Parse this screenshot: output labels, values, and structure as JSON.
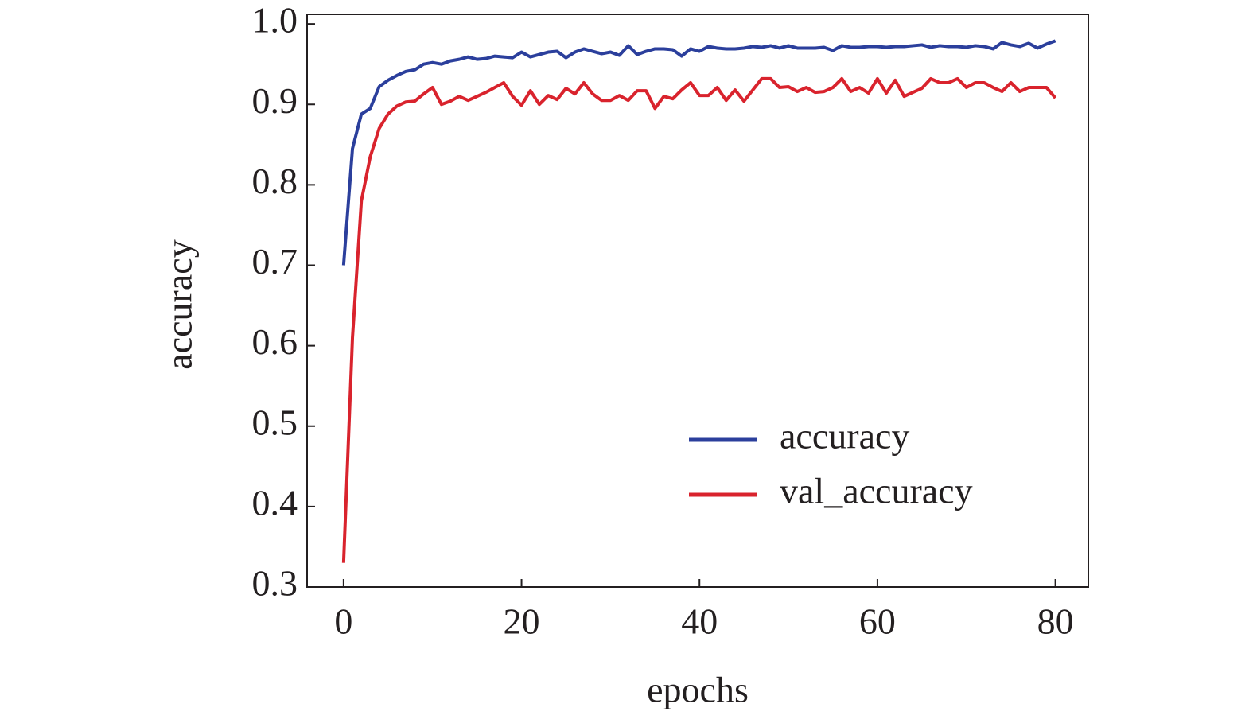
{
  "chart_data": {
    "type": "line",
    "x_label": "epochs",
    "y_label": "accuracy",
    "x": [
      0,
      1,
      2,
      3,
      4,
      5,
      6,
      7,
      8,
      9,
      10,
      11,
      12,
      13,
      14,
      15,
      16,
      17,
      18,
      19,
      20,
      21,
      22,
      23,
      24,
      25,
      26,
      27,
      28,
      29,
      30,
      31,
      32,
      33,
      34,
      35,
      36,
      37,
      38,
      39,
      40,
      41,
      42,
      43,
      44,
      45,
      46,
      47,
      48,
      49,
      50,
      51,
      52,
      53,
      54,
      55,
      56,
      57,
      58,
      59,
      60,
      61,
      62,
      63,
      64,
      65,
      66,
      67,
      68,
      69,
      70,
      71,
      72,
      73,
      74,
      75,
      76,
      77,
      78,
      79,
      80
    ],
    "series": [
      {
        "name": "accuracy",
        "color": "#2b3f9c",
        "values": [
          0.7,
          0.845,
          0.888,
          0.895,
          0.922,
          0.93,
          0.936,
          0.941,
          0.943,
          0.95,
          0.952,
          0.95,
          0.954,
          0.956,
          0.959,
          0.956,
          0.957,
          0.96,
          0.959,
          0.958,
          0.965,
          0.959,
          0.962,
          0.965,
          0.966,
          0.958,
          0.965,
          0.969,
          0.966,
          0.963,
          0.965,
          0.961,
          0.973,
          0.962,
          0.966,
          0.969,
          0.969,
          0.968,
          0.96,
          0.969,
          0.966,
          0.972,
          0.97,
          0.969,
          0.969,
          0.97,
          0.972,
          0.971,
          0.973,
          0.97,
          0.973,
          0.97,
          0.97,
          0.97,
          0.971,
          0.967,
          0.973,
          0.971,
          0.971,
          0.972,
          0.972,
          0.971,
          0.972,
          0.972,
          0.973,
          0.974,
          0.971,
          0.973,
          0.972,
          0.972,
          0.971,
          0.973,
          0.972,
          0.969,
          0.977,
          0.974,
          0.972,
          0.976,
          0.97,
          0.975,
          0.979
        ]
      },
      {
        "name": "val_accuracy",
        "color": "#d9232d",
        "values": [
          0.33,
          0.61,
          0.78,
          0.835,
          0.87,
          0.888,
          0.898,
          0.903,
          0.904,
          0.913,
          0.921,
          0.9,
          0.904,
          0.91,
          0.905,
          0.91,
          0.915,
          0.921,
          0.927,
          0.91,
          0.899,
          0.917,
          0.9,
          0.911,
          0.906,
          0.92,
          0.913,
          0.927,
          0.913,
          0.905,
          0.905,
          0.911,
          0.905,
          0.917,
          0.917,
          0.895,
          0.91,
          0.907,
          0.918,
          0.927,
          0.911,
          0.911,
          0.921,
          0.905,
          0.918,
          0.904,
          0.918,
          0.932,
          0.932,
          0.921,
          0.922,
          0.916,
          0.921,
          0.915,
          0.916,
          0.921,
          0.932,
          0.916,
          0.921,
          0.914,
          0.932,
          0.914,
          0.93,
          0.91,
          0.915,
          0.92,
          0.932,
          0.927,
          0.927,
          0.932,
          0.921,
          0.927,
          0.927,
          0.921,
          0.916,
          0.927,
          0.916,
          0.921,
          0.921,
          0.921,
          0.908
        ]
      }
    ],
    "xlim": [
      -4.1,
      83.7
    ],
    "ylim": [
      0.3,
      1.012
    ],
    "xticks": [
      0,
      20,
      40,
      60,
      80
    ],
    "yticks": [
      0.3,
      0.4,
      0.5,
      0.6,
      0.7,
      0.8,
      0.9,
      {
        "value": 1,
        "label": "1.0"
      }
    ],
    "legend": "lower right"
  }
}
